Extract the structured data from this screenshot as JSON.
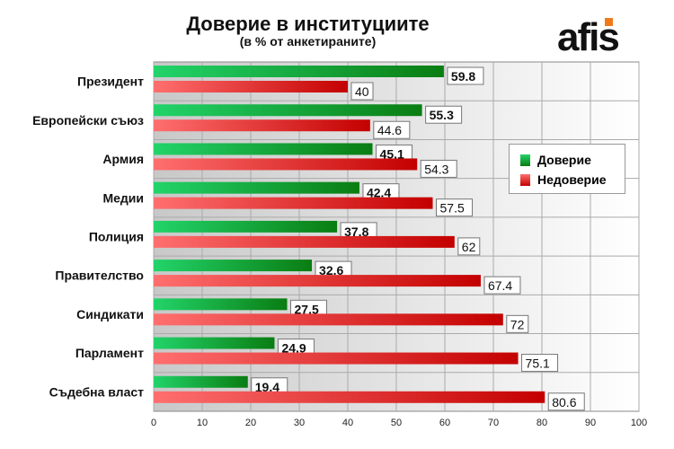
{
  "chart_data": {
    "type": "bar",
    "orientation": "horizontal",
    "title": "Доверие в институциите",
    "subtitle": "(в % от анкетираните)",
    "categories": [
      "Президент",
      "Европейски съюз",
      "Армия",
      "Медии",
      "Полиция",
      "Правителство",
      "Синдикати",
      "Парламент",
      "Съдебна власт"
    ],
    "series": [
      {
        "name": "Доверие",
        "color": "#0a8a1e",
        "values": [
          59.8,
          55.3,
          45.1,
          42.4,
          37.8,
          32.6,
          27.5,
          24.9,
          19.4
        ]
      },
      {
        "name": "Недоверие",
        "color": "#cc0a0a",
        "values": [
          40,
          44.6,
          54.3,
          57.5,
          62,
          67.4,
          72,
          75.1,
          80.6
        ]
      }
    ],
    "xlim": [
      0,
      100
    ],
    "xticks": [
      0,
      10,
      20,
      30,
      40,
      50,
      60,
      70,
      80,
      90,
      100
    ],
    "grid": true,
    "legend": "right",
    "data_labels": true
  },
  "logo": "afis"
}
